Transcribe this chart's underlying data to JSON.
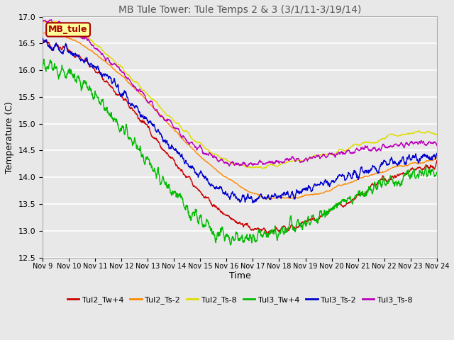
{
  "title": "MB Tule Tower: Tule Temps 2 & 3 (3/1/11-3/19/14)",
  "xlabel": "Time",
  "ylabel": "Temperature (C)",
  "ylim": [
    12.5,
    17.0
  ],
  "yticks": [
    12.5,
    13.0,
    13.5,
    14.0,
    14.5,
    15.0,
    15.5,
    16.0,
    16.5,
    17.0
  ],
  "xtick_labels": [
    "Nov 9",
    "Nov 10",
    "Nov 11",
    "Nov 12",
    "Nov 13",
    "Nov 14",
    "Nov 15",
    "Nov 16",
    "Nov 17",
    "Nov 18",
    "Nov 19",
    "Nov 20",
    "Nov 21",
    "Nov 22",
    "Nov 23",
    "Nov 24"
  ],
  "legend_label": "MB_tule",
  "legend_bg": "#ffff99",
  "legend_border": "#aa0000",
  "series": [
    {
      "name": "Tul2_Tw+4",
      "color": "#cc0000"
    },
    {
      "name": "Tul2_Ts-2",
      "color": "#ff8800"
    },
    {
      "name": "Tul2_Ts-8",
      "color": "#dddd00"
    },
    {
      "name": "Tul3_Tw+4",
      "color": "#00bb00"
    },
    {
      "name": "Tul3_Ts-2",
      "color": "#0000cc"
    },
    {
      "name": "Tul3_Ts-8",
      "color": "#bb00bb"
    }
  ],
  "background_color": "#e8e8e8",
  "plot_bg": "#e8e8e8",
  "grid_color": "#ffffff",
  "title_color": "#555555"
}
